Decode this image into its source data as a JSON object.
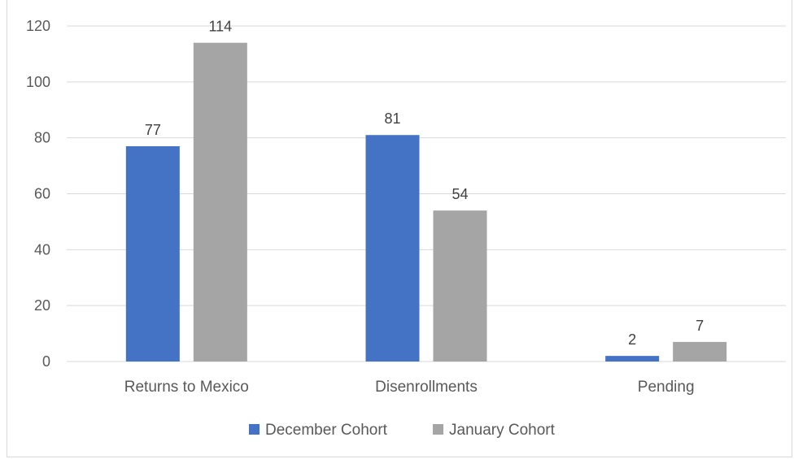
{
  "chart_data": {
    "type": "bar",
    "categories": [
      "Returns to Mexico",
      "Disenrollments",
      "Pending"
    ],
    "series": [
      {
        "name": "December Cohort",
        "values": [
          77,
          81,
          2
        ],
        "color": "#4472C4"
      },
      {
        "name": "January Cohort",
        "values": [
          114,
          54,
          7
        ],
        "color": "#A5A5A5"
      }
    ],
    "ylim": [
      0,
      120
    ],
    "yticks": [
      0,
      20,
      40,
      60,
      80,
      100,
      120
    ],
    "grid": true,
    "legend": "bottom-center",
    "data_labels": true
  }
}
